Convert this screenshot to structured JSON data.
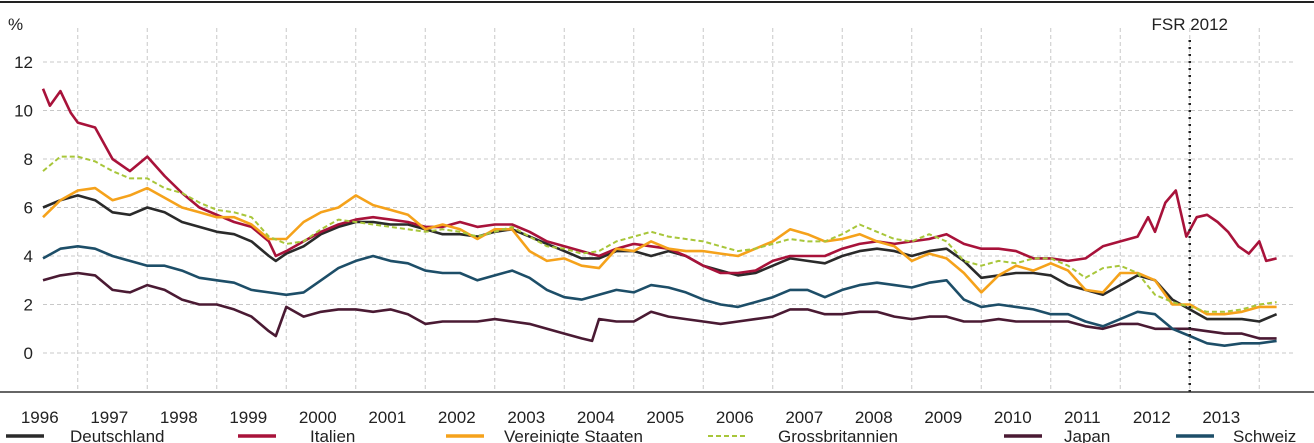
{
  "chart_data": {
    "type": "line",
    "ylabel": "%",
    "ylim": [
      0,
      12
    ],
    "yticks": [
      0,
      2,
      4,
      6,
      8,
      10,
      12
    ],
    "xlim": [
      1995.5,
      2013.5
    ],
    "xticks": [
      "1996",
      "1997",
      "1998",
      "1999",
      "2000",
      "2001",
      "2002",
      "2003",
      "2004",
      "2005",
      "2006",
      "2007",
      "2008",
      "2009",
      "2010",
      "2011",
      "2012",
      "2013"
    ],
    "grid": true,
    "annotation": {
      "label": "FSR 2012",
      "x": 2012.0
    },
    "legend_position": "bottom",
    "series": [
      {
        "name": "Deutschland",
        "color": "#2a2a2a",
        "dash": "",
        "x": [
          1995.5,
          1995.75,
          1996.0,
          1996.25,
          1996.5,
          1996.75,
          1997.0,
          1997.25,
          1997.5,
          1997.75,
          1998.0,
          1998.25,
          1998.5,
          1998.75,
          1998.85,
          1999.0,
          1999.25,
          1999.5,
          1999.75,
          2000.0,
          2000.25,
          2000.5,
          2000.75,
          2001.0,
          2001.25,
          2001.5,
          2001.75,
          2002.0,
          2002.25,
          2002.5,
          2002.75,
          2003.0,
          2003.25,
          2003.5,
          2003.75,
          2004.0,
          2004.25,
          2004.5,
          2004.75,
          2005.0,
          2005.25,
          2005.5,
          2005.75,
          2006.0,
          2006.25,
          2006.5,
          2006.75,
          2007.0,
          2007.25,
          2007.5,
          2007.75,
          2008.0,
          2008.25,
          2008.5,
          2008.75,
          2009.0,
          2009.25,
          2009.5,
          2009.75,
          2010.0,
          2010.25,
          2010.5,
          2010.75,
          2011.0,
          2011.25,
          2011.5,
          2011.75,
          2012.0,
          2012.25,
          2012.5,
          2012.75,
          2013.0,
          2013.25
        ],
        "y": [
          6.0,
          6.3,
          6.5,
          6.3,
          5.8,
          5.7,
          6.0,
          5.8,
          5.4,
          5.2,
          5.0,
          4.9,
          4.6,
          4.0,
          3.8,
          4.1,
          4.4,
          4.9,
          5.2,
          5.4,
          5.4,
          5.3,
          5.3,
          5.1,
          4.9,
          4.9,
          4.8,
          5.0,
          5.1,
          4.8,
          4.5,
          4.2,
          3.9,
          3.9,
          4.2,
          4.2,
          4.0,
          4.2,
          4.0,
          3.6,
          3.4,
          3.2,
          3.3,
          3.6,
          3.9,
          3.8,
          3.7,
          4.0,
          4.2,
          4.3,
          4.2,
          4.0,
          4.2,
          4.3,
          3.8,
          3.1,
          3.2,
          3.3,
          3.3,
          3.2,
          2.8,
          2.6,
          2.4,
          2.8,
          3.2,
          3.0,
          2.2,
          1.8,
          1.4,
          1.4,
          1.4,
          1.3,
          1.6
        ]
      },
      {
        "name": "Italien",
        "color": "#a8123a",
        "dash": "",
        "x": [
          1995.5,
          1995.6,
          1995.75,
          1995.9,
          1996.0,
          1996.25,
          1996.5,
          1996.75,
          1997.0,
          1997.25,
          1997.5,
          1997.75,
          1998.0,
          1998.25,
          1998.5,
          1998.75,
          1998.85,
          1999.0,
          1999.25,
          1999.5,
          1999.75,
          2000.0,
          2000.25,
          2000.5,
          2000.75,
          2001.0,
          2001.25,
          2001.5,
          2001.75,
          2002.0,
          2002.25,
          2002.5,
          2002.75,
          2003.0,
          2003.25,
          2003.5,
          2003.75,
          2004.0,
          2004.25,
          2004.5,
          2004.75,
          2005.0,
          2005.25,
          2005.5,
          2005.75,
          2006.0,
          2006.25,
          2006.5,
          2006.75,
          2007.0,
          2007.25,
          2007.5,
          2007.75,
          2008.0,
          2008.25,
          2008.5,
          2008.75,
          2009.0,
          2009.25,
          2009.5,
          2009.75,
          2010.0,
          2010.25,
          2010.5,
          2010.75,
          2011.0,
          2011.25,
          2011.4,
          2011.5,
          2011.65,
          2011.8,
          2011.95,
          2012.1,
          2012.25,
          2012.4,
          2012.55,
          2012.7,
          2012.85,
          2013.0,
          2013.1,
          2013.25
        ],
        "y": [
          10.9,
          10.2,
          10.8,
          9.9,
          9.5,
          9.3,
          8.0,
          7.5,
          8.1,
          7.3,
          6.6,
          6.0,
          5.7,
          5.4,
          5.2,
          4.6,
          4.0,
          4.2,
          4.6,
          5.0,
          5.3,
          5.5,
          5.6,
          5.5,
          5.4,
          5.2,
          5.2,
          5.4,
          5.2,
          5.3,
          5.3,
          5.0,
          4.6,
          4.4,
          4.2,
          4.0,
          4.3,
          4.5,
          4.4,
          4.3,
          4.0,
          3.6,
          3.3,
          3.3,
          3.4,
          3.8,
          4.0,
          4.0,
          4.0,
          4.3,
          4.5,
          4.6,
          4.5,
          4.6,
          4.7,
          4.9,
          4.5,
          4.3,
          4.3,
          4.2,
          3.9,
          3.9,
          3.8,
          3.9,
          4.4,
          4.6,
          4.8,
          5.6,
          5.0,
          6.2,
          6.7,
          4.8,
          5.6,
          5.7,
          5.4,
          5.0,
          4.4,
          4.1,
          4.6,
          3.8,
          3.9
        ]
      },
      {
        "name": "Vereinigte Staaten",
        "color": "#f5a21b",
        "dash": "",
        "x": [
          1995.5,
          1995.75,
          1996.0,
          1996.25,
          1996.5,
          1996.75,
          1997.0,
          1997.25,
          1997.5,
          1997.75,
          1998.0,
          1998.25,
          1998.5,
          1998.75,
          1999.0,
          1999.25,
          1999.5,
          1999.75,
          2000.0,
          2000.25,
          2000.5,
          2000.75,
          2001.0,
          2001.25,
          2001.5,
          2001.75,
          2002.0,
          2002.25,
          2002.5,
          2002.75,
          2003.0,
          2003.25,
          2003.5,
          2003.75,
          2004.0,
          2004.25,
          2004.5,
          2004.75,
          2005.0,
          2005.25,
          2005.5,
          2005.75,
          2006.0,
          2006.25,
          2006.5,
          2006.75,
          2007.0,
          2007.25,
          2007.5,
          2007.75,
          2008.0,
          2008.25,
          2008.5,
          2008.75,
          2009.0,
          2009.25,
          2009.5,
          2009.75,
          2010.0,
          2010.25,
          2010.5,
          2010.75,
          2011.0,
          2011.25,
          2011.5,
          2011.75,
          2012.0,
          2012.25,
          2012.5,
          2012.75,
          2013.0,
          2013.25
        ],
        "y": [
          5.6,
          6.3,
          6.7,
          6.8,
          6.3,
          6.5,
          6.8,
          6.4,
          6.0,
          5.8,
          5.6,
          5.6,
          5.3,
          4.7,
          4.7,
          5.4,
          5.8,
          6.0,
          6.5,
          6.1,
          5.9,
          5.7,
          5.1,
          5.3,
          5.1,
          4.7,
          5.1,
          5.1,
          4.2,
          3.8,
          3.9,
          3.6,
          3.5,
          4.3,
          4.2,
          4.6,
          4.3,
          4.2,
          4.2,
          4.1,
          4.0,
          4.3,
          4.6,
          5.1,
          4.9,
          4.6,
          4.7,
          4.9,
          4.6,
          4.4,
          3.8,
          4.1,
          3.9,
          3.3,
          2.5,
          3.2,
          3.6,
          3.4,
          3.7,
          3.4,
          2.6,
          2.5,
          3.3,
          3.3,
          3.0,
          2.0,
          2.0,
          1.6,
          1.6,
          1.7,
          1.9,
          1.9
        ]
      },
      {
        "name": "Grossbritannien",
        "color": "#a8c63a",
        "dash": "5,3",
        "x": [
          1995.5,
          1995.75,
          1996.0,
          1996.25,
          1996.5,
          1996.75,
          1997.0,
          1997.25,
          1997.5,
          1997.75,
          1998.0,
          1998.25,
          1998.5,
          1998.75,
          1999.0,
          1999.25,
          1999.5,
          1999.75,
          2000.0,
          2000.25,
          2000.5,
          2000.75,
          2001.0,
          2001.25,
          2001.5,
          2001.75,
          2002.0,
          2002.25,
          2002.5,
          2002.75,
          2003.0,
          2003.25,
          2003.5,
          2003.75,
          2004.0,
          2004.25,
          2004.5,
          2004.75,
          2005.0,
          2005.25,
          2005.5,
          2005.75,
          2006.0,
          2006.25,
          2006.5,
          2006.75,
          2007.0,
          2007.25,
          2007.5,
          2007.75,
          2008.0,
          2008.25,
          2008.5,
          2008.75,
          2009.0,
          2009.25,
          2009.5,
          2009.75,
          2010.0,
          2010.25,
          2010.5,
          2010.75,
          2011.0,
          2011.25,
          2011.5,
          2011.75,
          2012.0,
          2012.25,
          2012.5,
          2012.75,
          2013.0,
          2013.25
        ],
        "y": [
          7.5,
          8.1,
          8.1,
          7.9,
          7.5,
          7.2,
          7.2,
          6.8,
          6.6,
          6.2,
          5.9,
          5.8,
          5.6,
          4.8,
          4.5,
          4.6,
          5.1,
          5.5,
          5.4,
          5.3,
          5.2,
          5.1,
          5.0,
          5.1,
          5.0,
          4.8,
          5.0,
          5.2,
          4.8,
          4.4,
          4.3,
          4.1,
          4.2,
          4.6,
          4.8,
          5.0,
          4.8,
          4.7,
          4.6,
          4.4,
          4.2,
          4.3,
          4.5,
          4.7,
          4.6,
          4.6,
          4.9,
          5.3,
          5.0,
          4.7,
          4.6,
          4.9,
          4.6,
          3.8,
          3.6,
          3.8,
          3.7,
          3.9,
          3.9,
          3.6,
          3.1,
          3.5,
          3.6,
          3.3,
          2.4,
          2.1,
          1.9,
          1.7,
          1.7,
          1.8,
          2.0,
          2.1
        ]
      },
      {
        "name": "Japan",
        "color": "#4a1a33",
        "dash": "",
        "x": [
          1995.5,
          1995.75,
          1996.0,
          1996.25,
          1996.5,
          1996.75,
          1997.0,
          1997.25,
          1997.5,
          1997.75,
          1998.0,
          1998.25,
          1998.5,
          1998.75,
          1998.85,
          1999.0,
          1999.25,
          1999.5,
          1999.75,
          2000.0,
          2000.25,
          2000.5,
          2000.75,
          2001.0,
          2001.25,
          2001.5,
          2001.75,
          2002.0,
          2002.25,
          2002.5,
          2002.75,
          2003.0,
          2003.25,
          2003.4,
          2003.5,
          2003.75,
          2004.0,
          2004.25,
          2004.5,
          2004.75,
          2005.0,
          2005.25,
          2005.5,
          2005.75,
          2006.0,
          2006.25,
          2006.5,
          2006.75,
          2007.0,
          2007.25,
          2007.5,
          2007.75,
          2008.0,
          2008.25,
          2008.5,
          2008.75,
          2009.0,
          2009.25,
          2009.5,
          2009.75,
          2010.0,
          2010.25,
          2010.5,
          2010.75,
          2011.0,
          2011.25,
          2011.5,
          2011.75,
          2012.0,
          2012.25,
          2012.5,
          2012.75,
          2013.0,
          2013.25
        ],
        "y": [
          3.0,
          3.2,
          3.3,
          3.2,
          2.6,
          2.5,
          2.8,
          2.6,
          2.2,
          2.0,
          2.0,
          1.8,
          1.5,
          0.9,
          0.7,
          1.9,
          1.5,
          1.7,
          1.8,
          1.8,
          1.7,
          1.8,
          1.6,
          1.2,
          1.3,
          1.3,
          1.3,
          1.4,
          1.3,
          1.2,
          1.0,
          0.8,
          0.6,
          0.5,
          1.4,
          1.3,
          1.3,
          1.7,
          1.5,
          1.4,
          1.3,
          1.2,
          1.3,
          1.4,
          1.5,
          1.8,
          1.8,
          1.6,
          1.6,
          1.7,
          1.7,
          1.5,
          1.4,
          1.5,
          1.5,
          1.3,
          1.3,
          1.4,
          1.3,
          1.3,
          1.3,
          1.3,
          1.1,
          1.0,
          1.2,
          1.2,
          1.0,
          1.0,
          1.0,
          0.9,
          0.8,
          0.8,
          0.6,
          0.6
        ]
      },
      {
        "name": "Schweiz",
        "color": "#1d4e68",
        "dash": "",
        "x": [
          1995.5,
          1995.75,
          1996.0,
          1996.25,
          1996.5,
          1996.75,
          1997.0,
          1997.25,
          1997.5,
          1997.75,
          1998.0,
          1998.25,
          1998.5,
          1998.75,
          1999.0,
          1999.25,
          1999.5,
          1999.75,
          2000.0,
          2000.25,
          2000.5,
          2000.75,
          2001.0,
          2001.25,
          2001.5,
          2001.75,
          2002.0,
          2002.25,
          2002.5,
          2002.75,
          2003.0,
          2003.25,
          2003.5,
          2003.75,
          2004.0,
          2004.25,
          2004.5,
          2004.75,
          2005.0,
          2005.25,
          2005.5,
          2005.75,
          2006.0,
          2006.25,
          2006.5,
          2006.75,
          2007.0,
          2007.25,
          2007.5,
          2007.75,
          2008.0,
          2008.25,
          2008.5,
          2008.75,
          2009.0,
          2009.25,
          2009.5,
          2009.75,
          2010.0,
          2010.25,
          2010.5,
          2010.75,
          2011.0,
          2011.25,
          2011.5,
          2011.75,
          2012.0,
          2012.25,
          2012.5,
          2012.75,
          2013.0,
          2013.25
        ],
        "y": [
          3.9,
          4.3,
          4.4,
          4.3,
          4.0,
          3.8,
          3.6,
          3.6,
          3.4,
          3.1,
          3.0,
          2.9,
          2.6,
          2.5,
          2.4,
          2.5,
          3.0,
          3.5,
          3.8,
          4.0,
          3.8,
          3.7,
          3.4,
          3.3,
          3.3,
          3.0,
          3.2,
          3.4,
          3.1,
          2.6,
          2.3,
          2.2,
          2.4,
          2.6,
          2.5,
          2.8,
          2.7,
          2.5,
          2.2,
          2.0,
          1.9,
          2.1,
          2.3,
          2.6,
          2.6,
          2.3,
          2.6,
          2.8,
          2.9,
          2.8,
          2.7,
          2.9,
          3.0,
          2.2,
          1.9,
          2.0,
          1.9,
          1.8,
          1.6,
          1.6,
          1.3,
          1.1,
          1.4,
          1.7,
          1.6,
          1.0,
          0.7,
          0.4,
          0.3,
          0.4,
          0.4,
          0.5
        ]
      }
    ]
  }
}
